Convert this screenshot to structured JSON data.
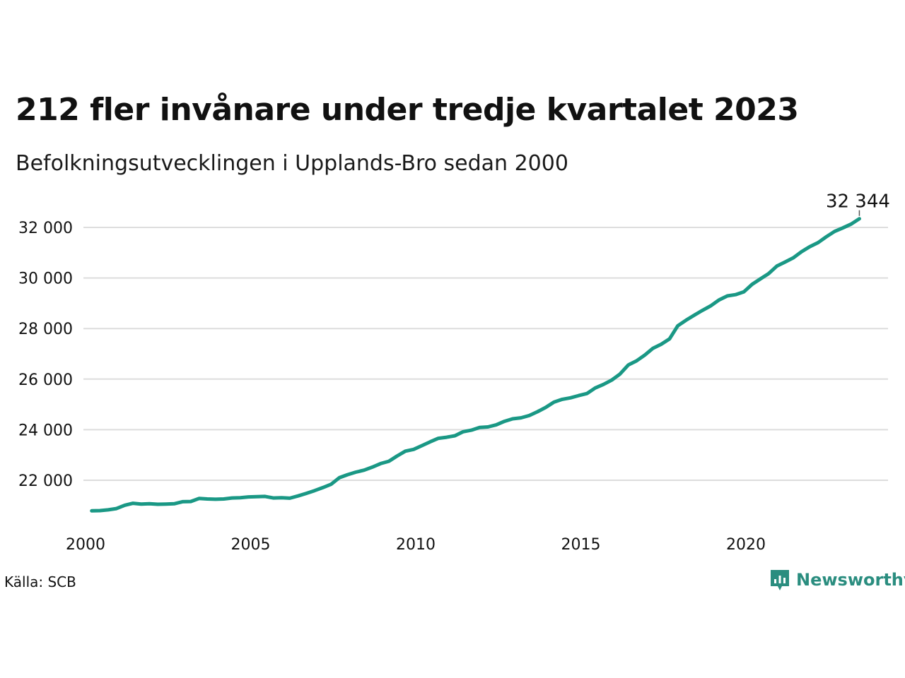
{
  "title": "212 fler invånare under tredje kvartalet 2023",
  "subtitle": "Befolkningsutvecklingen i Upplands-Bro sedan 2000",
  "source": "Källa: SCB",
  "brand": "Newsworthy",
  "colors": {
    "line": "#1a9885",
    "grid": "#dddddd",
    "brand": "#2a8d7f"
  },
  "chart_data": {
    "type": "line",
    "title": "212 fler invånare under tredje kvartalet 2023",
    "subtitle": "Befolkningsutvecklingen i Upplands-Bro sedan 2000",
    "xlabel": "",
    "ylabel": "",
    "xlim": [
      2000,
      2024.4
    ],
    "ylim": [
      20300,
      32500
    ],
    "x_ticks": [
      2000,
      2005,
      2010,
      2015,
      2020
    ],
    "x_tick_labels": [
      "2000",
      "2005",
      "2010",
      "2015",
      "2020"
    ],
    "y_ticks": [
      22000,
      24000,
      26000,
      28000,
      30000,
      32000
    ],
    "y_tick_labels": [
      "22 000",
      "24 000",
      "26 000",
      "28 000",
      "30 000",
      "32 000"
    ],
    "grid": "horizontal",
    "end_label": "32 344",
    "series": [
      {
        "x": [
          2000.25,
          2000.5,
          2000.75,
          2001,
          2001.25,
          2001.5,
          2001.75,
          2002,
          2002.25,
          2002.5,
          2002.75,
          2003,
          2003.25,
          2003.5,
          2003.75,
          2004,
          2004.25,
          2004.5,
          2004.75,
          2005,
          2005.25,
          2005.5,
          2005.75,
          2006,
          2006.25,
          2006.5,
          2006.75,
          2007,
          2007.25,
          2007.5,
          2007.75,
          2008,
          2008.25,
          2008.5,
          2008.75,
          2009,
          2009.25,
          2009.5,
          2009.75,
          2010,
          2010.25,
          2010.5,
          2010.75,
          2011,
          2011.25,
          2011.5,
          2011.75,
          2012,
          2012.25,
          2012.5,
          2012.75,
          2013,
          2013.25,
          2013.5,
          2013.75,
          2014,
          2014.25,
          2014.5,
          2014.75,
          2015,
          2015.25,
          2015.5,
          2015.75,
          2016,
          2016.25,
          2016.5,
          2016.75,
          2017,
          2017.25,
          2017.5,
          2017.75,
          2018,
          2018.25,
          2018.5,
          2018.75,
          2019,
          2019.25,
          2019.5,
          2019.75,
          2020,
          2020.25,
          2020.5,
          2020.75,
          2021,
          2021.25,
          2021.5,
          2021.75,
          2022,
          2022.25,
          2022.5,
          2022.75,
          2023,
          2023.25,
          2023.5
        ],
        "values": [
          20790,
          20800,
          20830,
          20880,
          21010,
          21090,
          21060,
          21070,
          21050,
          21060,
          21070,
          21150,
          21160,
          21280,
          21260,
          21250,
          21260,
          21300,
          21310,
          21340,
          21350,
          21360,
          21300,
          21310,
          21290,
          21380,
          21480,
          21590,
          21710,
          21840,
          22100,
          22220,
          22320,
          22400,
          22520,
          22660,
          22750,
          22960,
          23150,
          23220,
          23370,
          23520,
          23660,
          23700,
          23760,
          23920,
          23980,
          24090,
          24110,
          24190,
          24330,
          24430,
          24470,
          24560,
          24710,
          24880,
          25090,
          25200,
          25260,
          25350,
          25430,
          25650,
          25790,
          25960,
          26200,
          26560,
          26720,
          26950,
          27220,
          27380,
          27590,
          28110,
          28330,
          28530,
          28720,
          28900,
          29130,
          29290,
          29340,
          29450,
          29750,
          29960,
          30170,
          30470,
          30630,
          30800,
          31040,
          31240,
          31400,
          31630,
          31840,
          31980,
          32132,
          32344
        ]
      }
    ]
  }
}
